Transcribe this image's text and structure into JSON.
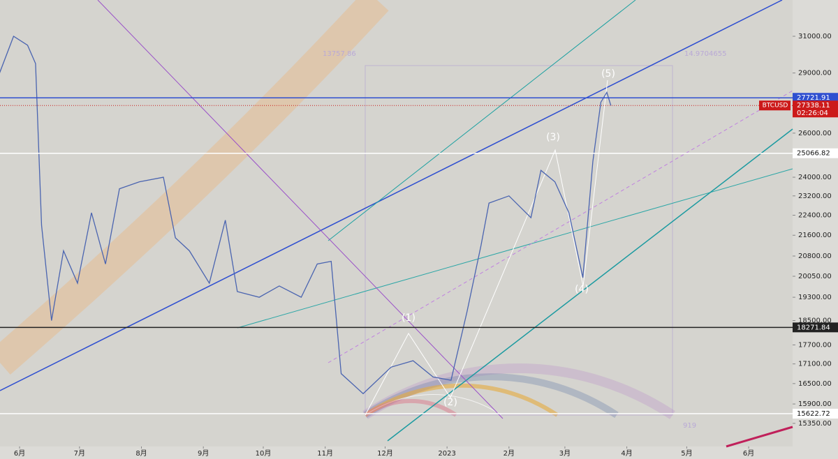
{
  "chart_data": {
    "type": "line",
    "log_scale": true,
    "series": [
      {
        "name": "BTCUSD",
        "color": "#4a64b0",
        "x": [
          -10,
          -3,
          4,
          8,
          11,
          16,
          22,
          29,
          36,
          43,
          50,
          60,
          72,
          78,
          85,
          95,
          103,
          109,
          120,
          130,
          141,
          149,
          156,
          161,
          172,
          186,
          197,
          207,
          216,
          224,
          231,
          235,
          245,
          256,
          261,
          268,
          275,
          282,
          287,
          291,
          294,
          296
        ],
        "values": [
          29000,
          31000,
          30500,
          29500,
          22000,
          18500,
          21000,
          19800,
          22500,
          20500,
          23500,
          23800,
          24000,
          21500,
          21000,
          19800,
          22200,
          19500,
          19300,
          19700,
          19300,
          20500,
          20600,
          16800,
          16200,
          17000,
          17200,
          16700,
          16600,
          18800,
          21200,
          22900,
          23200,
          22300,
          24300,
          23800,
          22500,
          20000,
          24700,
          27500,
          28000,
          27338
        ]
      }
    ],
    "last": {
      "value": 27338.11,
      "symbol": "BTCUSD",
      "countdown": "02:26:04",
      "color": "#cc1a1a"
    },
    "levels": [
      {
        "value": 27721.91,
        "color": "#2f4fd0"
      },
      {
        "value": 25066.82,
        "color": "#ffffff"
      },
      {
        "value": 18271.84,
        "color": "#222222"
      },
      {
        "value": 15622.72,
        "color": "#ffffff"
      }
    ],
    "annotations": [
      "(1)",
      "(2)",
      "(3)",
      "(4)",
      "(5)",
      "13757.86",
      "14.9704655",
      "919"
    ],
    "xlim": [
      -9.8,
      387
    ],
    "xticks": [
      {
        "value": 0,
        "label": "6月"
      },
      {
        "value": 30,
        "label": "7月"
      },
      {
        "value": 61,
        "label": "8月"
      },
      {
        "value": 92,
        "label": "9月"
      },
      {
        "value": 122,
        "label": "10月"
      },
      {
        "value": 153,
        "label": "11月"
      },
      {
        "value": 183,
        "label": "12月"
      },
      {
        "value": 214,
        "label": "2023"
      },
      {
        "value": 245,
        "label": "2月"
      },
      {
        "value": 273,
        "label": "3月"
      },
      {
        "value": 304,
        "label": "4月"
      },
      {
        "value": 334,
        "label": "5月"
      },
      {
        "value": 365,
        "label": "6月"
      }
    ],
    "ylim": [
      14720,
      33110
    ],
    "yticks": [
      {
        "value": 31000,
        "label": "31000.00"
      },
      {
        "value": 29000,
        "label": "29000.00"
      },
      {
        "value": 26000,
        "label": "26000.00"
      },
      {
        "value": 24000,
        "label": "24000.00"
      },
      {
        "value": 23200,
        "label": "23200.00"
      },
      {
        "value": 22400,
        "label": "22400.00"
      },
      {
        "value": 21600,
        "label": "21600.00"
      },
      {
        "value": 20800,
        "label": "20800.00"
      },
      {
        "value": 20050,
        "label": "20050.00"
      },
      {
        "value": 19300,
        "label": "19300.00"
      },
      {
        "value": 18500,
        "label": "18500.00"
      },
      {
        "value": 17700,
        "label": "17700.00"
      },
      {
        "value": 17100,
        "label": "17100.00"
      },
      {
        "value": 16500,
        "label": "16500.00"
      },
      {
        "value": 15900,
        "label": "15900.00"
      },
      {
        "value": 15350,
        "label": "15350.00"
      }
    ]
  }
}
